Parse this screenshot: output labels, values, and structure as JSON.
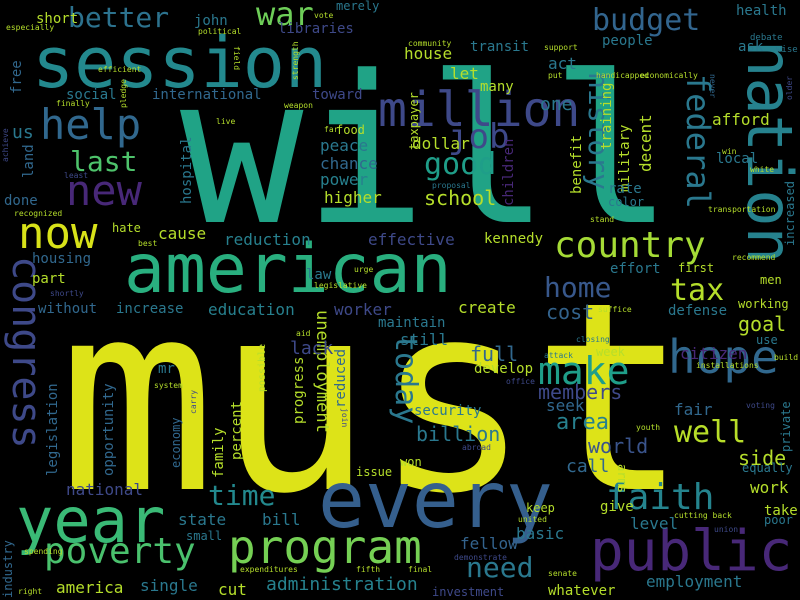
{
  "background_color": "#000000",
  "palette": [
    "#fde725",
    "#b5de2b",
    "#6ece58",
    "#35b779",
    "#1f9e89",
    "#26828e",
    "#31688e",
    "#3e4989",
    "#482878",
    "#440154"
  ],
  "words": [
    {
      "text": "must"
    },
    {
      "text": "will"
    },
    {
      "text": "every"
    },
    {
      "text": "american"
    },
    {
      "text": "session"
    },
    {
      "text": "nation"
    },
    {
      "text": "year"
    },
    {
      "text": "public"
    },
    {
      "text": "million"
    },
    {
      "text": "program"
    },
    {
      "text": "congress"
    },
    {
      "text": "now"
    },
    {
      "text": "hope"
    },
    {
      "text": "new"
    },
    {
      "text": "help"
    },
    {
      "text": "country"
    },
    {
      "text": "poverty"
    },
    {
      "text": "make"
    },
    {
      "text": "faith"
    },
    {
      "text": "job"
    },
    {
      "text": "federal"
    },
    {
      "text": "better"
    },
    {
      "text": "budget"
    },
    {
      "text": "history"
    },
    {
      "text": "last"
    },
    {
      "text": "home"
    },
    {
      "text": "well"
    },
    {
      "text": "tax"
    },
    {
      "text": "today"
    },
    {
      "text": "good"
    },
    {
      "text": "time"
    },
    {
      "text": "war"
    },
    {
      "text": "need"
    },
    {
      "text": "administration"
    },
    {
      "text": "unemployment"
    },
    {
      "text": "billion"
    },
    {
      "text": "area"
    },
    {
      "text": "world"
    },
    {
      "text": "school"
    },
    {
      "text": "cost"
    },
    {
      "text": "full"
    },
    {
      "text": "goal"
    },
    {
      "text": "members"
    },
    {
      "text": "side"
    },
    {
      "text": "fellow"
    },
    {
      "text": "national"
    },
    {
      "text": "state"
    },
    {
      "text": "education"
    },
    {
      "text": "reduction"
    },
    {
      "text": "power"
    },
    {
      "text": "cause"
    },
    {
      "text": "higher"
    },
    {
      "text": "chance"
    },
    {
      "text": "peace"
    },
    {
      "text": "dollar"
    },
    {
      "text": "effective"
    },
    {
      "text": "create"
    },
    {
      "text": "increase"
    },
    {
      "text": "without"
    },
    {
      "text": "housing"
    },
    {
      "text": "part"
    },
    {
      "text": "international"
    },
    {
      "text": "toward"
    },
    {
      "text": "one"
    },
    {
      "text": "let"
    },
    {
      "text": "house"
    },
    {
      "text": "done"
    },
    {
      "text": "family"
    },
    {
      "text": "percent"
    },
    {
      "text": "economy"
    },
    {
      "text": "opportunity"
    },
    {
      "text": "legislation"
    },
    {
      "text": "progress"
    },
    {
      "text": "lack"
    },
    {
      "text": "reduced"
    },
    {
      "text": "develop"
    },
    {
      "text": "maintain"
    },
    {
      "text": "worker"
    },
    {
      "text": "still"
    },
    {
      "text": "seek"
    },
    {
      "text": "security"
    },
    {
      "text": "call"
    },
    {
      "text": "citizen"
    },
    {
      "text": "defense"
    },
    {
      "text": "working"
    },
    {
      "text": "fair"
    },
    {
      "text": "work"
    },
    {
      "text": "take"
    },
    {
      "text": "level"
    },
    {
      "text": "employment"
    },
    {
      "text": "give"
    },
    {
      "text": "keep"
    },
    {
      "text": "basic"
    },
    {
      "text": "america"
    },
    {
      "text": "single"
    },
    {
      "text": "cut"
    },
    {
      "text": "small"
    },
    {
      "text": "bill"
    },
    {
      "text": "whatever"
    },
    {
      "text": "investment"
    },
    {
      "text": "kennedy"
    },
    {
      "text": "effort"
    },
    {
      "text": "first"
    },
    {
      "text": "afford"
    },
    {
      "text": "local"
    },
    {
      "text": "military"
    },
    {
      "text": "decent"
    },
    {
      "text": "training"
    },
    {
      "text": "benefit"
    },
    {
      "text": "rate"
    },
    {
      "text": "color"
    },
    {
      "text": "children"
    },
    {
      "text": "taxpayer"
    },
    {
      "text": "act"
    },
    {
      "text": "many"
    },
    {
      "text": "transit"
    },
    {
      "text": "people"
    },
    {
      "text": "ask"
    },
    {
      "text": "health"
    },
    {
      "text": "john"
    },
    {
      "text": "libraries"
    },
    {
      "text": "merely"
    },
    {
      "text": "short"
    },
    {
      "text": "free"
    },
    {
      "text": "social"
    },
    {
      "text": "us"
    },
    {
      "text": "land"
    },
    {
      "text": "hospital"
    },
    {
      "text": "hate"
    },
    {
      "text": "food"
    },
    {
      "text": "law"
    },
    {
      "text": "mr"
    },
    {
      "text": "week"
    },
    {
      "text": "arms"
    },
    {
      "text": "issue"
    },
    {
      "text": "won"
    },
    {
      "text": "industry"
    },
    {
      "text": "private"
    },
    {
      "text": "poor"
    },
    {
      "text": "equally"
    },
    {
      "text": "increased"
    },
    {
      "text": "men"
    },
    {
      "text": "use"
    },
    {
      "text": "older"
    },
    {
      "text": "wise"
    },
    {
      "text": "debate"
    },
    {
      "text": "economically"
    },
    {
      "text": "never"
    },
    {
      "text": "support"
    },
    {
      "text": "put"
    },
    {
      "text": "handicapped"
    },
    {
      "text": "community"
    },
    {
      "text": "vote"
    },
    {
      "text": "political"
    },
    {
      "text": "strength"
    },
    {
      "text": "especially"
    },
    {
      "text": "efficient"
    },
    {
      "text": "finally"
    },
    {
      "text": "pledge"
    },
    {
      "text": "field"
    },
    {
      "text": "weapon"
    },
    {
      "text": "live"
    },
    {
      "text": "achieve"
    },
    {
      "text": "least"
    },
    {
      "text": "far"
    },
    {
      "text": "proposal"
    },
    {
      "text": "recognized"
    },
    {
      "text": "best"
    },
    {
      "text": "stand"
    },
    {
      "text": "transportation"
    },
    {
      "text": "recommend"
    },
    {
      "text": "white"
    },
    {
      "text": "win"
    },
    {
      "text": "urge"
    },
    {
      "text": "legislative"
    },
    {
      "text": "shortly"
    },
    {
      "text": "aid"
    },
    {
      "text": "attack"
    },
    {
      "text": "closing"
    },
    {
      "text": "suffice"
    },
    {
      "text": "system"
    },
    {
      "text": "carry"
    },
    {
      "text": "possible"
    },
    {
      "text": "join"
    },
    {
      "text": "office"
    },
    {
      "text": "abroad"
    },
    {
      "text": "youth"
    },
    {
      "text": "installations"
    },
    {
      "text": "build"
    },
    {
      "text": "voting"
    },
    {
      "text": "union"
    },
    {
      "text": "cutting back"
    },
    {
      "text": "spending"
    },
    {
      "text": "expenditures"
    },
    {
      "text": "fifth"
    },
    {
      "text": "final"
    },
    {
      "text": "demonstrate"
    },
    {
      "text": "united"
    },
    {
      "text": "senate"
    },
    {
      "text": "right"
    }
  ]
}
